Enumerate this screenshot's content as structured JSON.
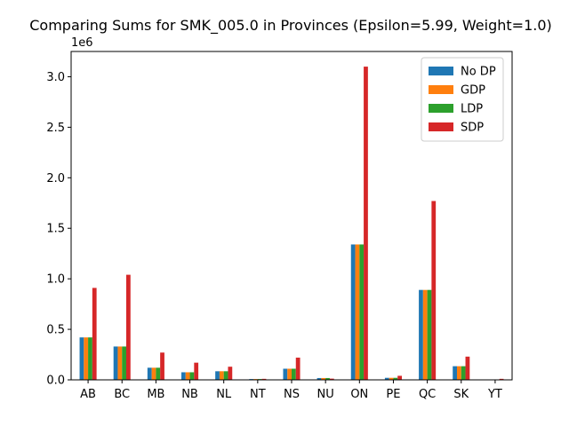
{
  "chart_data": {
    "type": "bar",
    "title": "Comparing Sums for SMK_005.0 in Provinces (Epsilon=5.99, Weight=1.0)",
    "xlabel": "",
    "ylabel": "",
    "scale_label": "1e6",
    "categories": [
      "AB",
      "BC",
      "MB",
      "NB",
      "NL",
      "NT",
      "NS",
      "NU",
      "ON",
      "PE",
      "QC",
      "SK",
      "YT"
    ],
    "y_ticks": [
      0.0,
      0.5,
      1.0,
      1.5,
      2.0,
      2.5,
      3.0
    ],
    "y_tick_labels": [
      "0.0",
      "0.5",
      "1.0",
      "1.5",
      "2.0",
      "2.5",
      "3.0"
    ],
    "ylim": [
      0,
      3.25
    ],
    "legend_position": "top-right",
    "grid": false,
    "series": [
      {
        "name": "No DP",
        "color": "#1f77b4",
        "values": [
          0.42,
          0.33,
          0.12,
          0.075,
          0.085,
          0.008,
          0.11,
          0.018,
          1.34,
          0.02,
          0.89,
          0.135,
          0.003
        ]
      },
      {
        "name": "GDP",
        "color": "#ff7f0e",
        "values": [
          0.42,
          0.33,
          0.12,
          0.075,
          0.085,
          0.008,
          0.11,
          0.018,
          1.34,
          0.02,
          0.89,
          0.135,
          0.003
        ]
      },
      {
        "name": "LDP",
        "color": "#2ca02c",
        "values": [
          0.42,
          0.33,
          0.12,
          0.075,
          0.085,
          0.008,
          0.11,
          0.018,
          1.34,
          0.02,
          0.89,
          0.135,
          0.003
        ]
      },
      {
        "name": "SDP",
        "color": "#d62728",
        "values": [
          0.91,
          1.04,
          0.27,
          0.17,
          0.13,
          0.01,
          0.22,
          0.012,
          3.1,
          0.04,
          1.77,
          0.23,
          0.01
        ]
      }
    ]
  }
}
